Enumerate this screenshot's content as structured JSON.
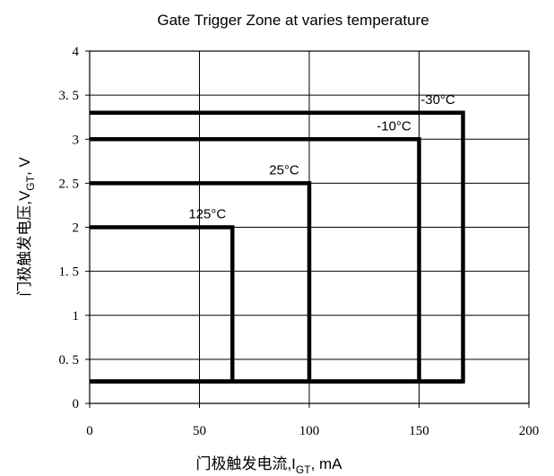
{
  "chart_data": {
    "type": "line",
    "title": "Gate Trigger Zone at varies temperature",
    "xlabel": {
      "main": "门极触发电流,I",
      "sub": "GT",
      "unit": ",  mA"
    },
    "ylabel": {
      "main": "门极触发电压,V",
      "sub": "GT",
      "unit": ", V"
    },
    "xlim": [
      0,
      200
    ],
    "ylim": [
      0,
      4
    ],
    "x_ticks": [
      0,
      50,
      100,
      150,
      200
    ],
    "y_ticks": [
      0,
      0.5,
      1,
      1.5,
      2,
      2.5,
      3,
      3.5,
      4
    ],
    "x_tick_labels": [
      "0",
      "50",
      "100",
      "150",
      "200"
    ],
    "y_tick_labels": [
      "0",
      "0. 5",
      "1",
      "1. 5",
      "2",
      "2. 5",
      "3",
      "3. 5",
      "4"
    ],
    "grid": true,
    "series": [
      {
        "name": "-30°C",
        "x": [
          0,
          170,
          170,
          0
        ],
        "y": [
          3.3,
          3.3,
          0.25,
          0.25
        ]
      },
      {
        "name": "-10°C",
        "x": [
          0,
          150,
          150
        ],
        "y": [
          3.0,
          3.0,
          0.25
        ]
      },
      {
        "name": "25°C",
        "x": [
          0,
          100,
          100
        ],
        "y": [
          2.5,
          2.5,
          0.25
        ]
      },
      {
        "name": "125°C",
        "x": [
          0,
          65,
          65
        ],
        "y": [
          2.0,
          2.0,
          0.25
        ]
      }
    ]
  }
}
